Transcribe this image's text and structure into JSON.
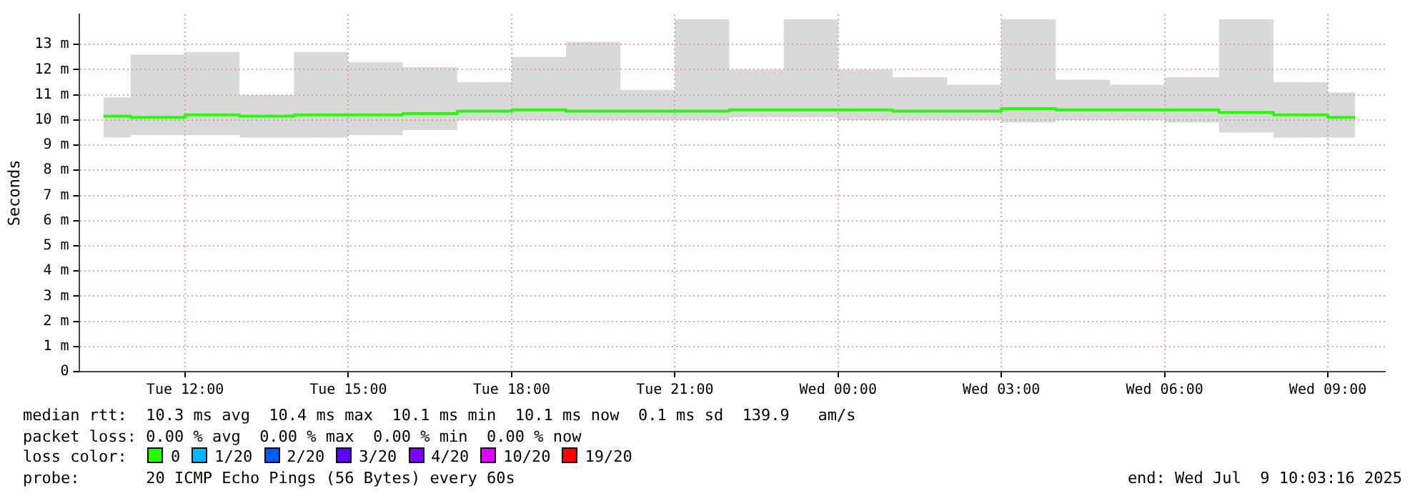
{
  "chart_data": {
    "type": "step",
    "ylabel": "Seconds",
    "legend_title": "loss color:",
    "legend": "bottom",
    "grid": true,
    "x": [
      "2025-07-08T10:30",
      "2025-07-08T11:30",
      "2025-07-08T12:30",
      "2025-07-08T13:30",
      "2025-07-08T14:30",
      "2025-07-08T15:30",
      "2025-07-08T16:30",
      "2025-07-08T17:30",
      "2025-07-08T18:30",
      "2025-07-08T19:30",
      "2025-07-08T20:30",
      "2025-07-08T21:30",
      "2025-07-08T22:30",
      "2025-07-08T23:30",
      "2025-07-09T00:30",
      "2025-07-09T01:30",
      "2025-07-09T02:30",
      "2025-07-09T03:30",
      "2025-07-09T04:30",
      "2025-07-09T05:30",
      "2025-07-09T06:30",
      "2025-07-09T07:30",
      "2025-07-09T08:30",
      "2025-07-09T09:30"
    ],
    "xlim": [
      "2025-07-08T10:03",
      "2025-07-09T10:03"
    ],
    "xticks": [
      {
        "value": "2025-07-08T12:00",
        "label": "Tue 12:00"
      },
      {
        "value": "2025-07-08T15:00",
        "label": "Tue 15:00"
      },
      {
        "value": "2025-07-08T18:00",
        "label": "Tue 18:00"
      },
      {
        "value": "2025-07-08T21:00",
        "label": "Tue 21:00"
      },
      {
        "value": "2025-07-09T00:00",
        "label": "Wed 00:00"
      },
      {
        "value": "2025-07-09T03:00",
        "label": "Wed 03:00"
      },
      {
        "value": "2025-07-09T06:00",
        "label": "Wed 06:00"
      },
      {
        "value": "2025-07-09T09:00",
        "label": "Wed 09:00"
      }
    ],
    "ylim": [
      0,
      14.2
    ],
    "yticks": [
      0,
      {
        "value": 1,
        "label": "1 m"
      },
      {
        "value": 2,
        "label": "2 m"
      },
      {
        "value": 3,
        "label": "3 m"
      },
      {
        "value": 4,
        "label": "4 m"
      },
      {
        "value": 5,
        "label": "5 m"
      },
      {
        "value": 6,
        "label": "6 m"
      },
      {
        "value": 7,
        "label": "7 m"
      },
      {
        "value": 8,
        "label": "8 m"
      },
      {
        "value": 9,
        "label": "9 m"
      },
      {
        "value": 10,
        "label": "10 m"
      },
      {
        "value": 11,
        "label": "11 m"
      },
      {
        "value": 12,
        "label": "12 m"
      },
      {
        "value": 13,
        "label": "13 m"
      }
    ],
    "series": [
      {
        "name": "0",
        "color": "#22ff00",
        "values": [
          10.15,
          10.1,
          10.2,
          10.15,
          10.2,
          10.2,
          10.25,
          10.35,
          10.4,
          10.35,
          10.35,
          10.35,
          10.4,
          10.4,
          10.4,
          10.35,
          10.35,
          10.45,
          10.4,
          10.4,
          10.4,
          10.3,
          10.2,
          10.1
        ],
        "lower": [
          9.3,
          9.4,
          9.4,
          9.3,
          9.3,
          9.4,
          9.6,
          10.0,
          10.0,
          10.0,
          10.0,
          10.0,
          10.1,
          10.1,
          10.0,
          10.0,
          10.0,
          9.9,
          10.0,
          10.0,
          9.9,
          9.5,
          9.3,
          9.3
        ],
        "upper": [
          10.9,
          12.6,
          12.7,
          11.0,
          12.7,
          12.3,
          12.1,
          11.5,
          12.5,
          13.1,
          11.2,
          14.0,
          12.0,
          14.0,
          12.0,
          11.7,
          11.4,
          14.0,
          11.6,
          11.4,
          11.7,
          14.0,
          11.5,
          11.1
        ]
      },
      {
        "name": "1/20",
        "color": "#00b8ff",
        "values": [
          null,
          null,
          null,
          null,
          null,
          null,
          null,
          null,
          null,
          null,
          null,
          null,
          null,
          null,
          null,
          null,
          null,
          null,
          null,
          null,
          null,
          null,
          null,
          null
        ]
      },
      {
        "name": "2/20",
        "color": "#0059ff",
        "values": [
          null,
          null,
          null,
          null,
          null,
          null,
          null,
          null,
          null,
          null,
          null,
          null,
          null,
          null,
          null,
          null,
          null,
          null,
          null,
          null,
          null,
          null,
          null,
          null
        ]
      },
      {
        "name": "3/20",
        "color": "#5e00ff",
        "values": [
          null,
          null,
          null,
          null,
          null,
          null,
          null,
          null,
          null,
          null,
          null,
          null,
          null,
          null,
          null,
          null,
          null,
          null,
          null,
          null,
          null,
          null,
          null,
          null
        ]
      },
      {
        "name": "4/20",
        "color": "#7e00ff",
        "values": [
          null,
          null,
          null,
          null,
          null,
          null,
          null,
          null,
          null,
          null,
          null,
          null,
          null,
          null,
          null,
          null,
          null,
          null,
          null,
          null,
          null,
          null,
          null,
          null
        ]
      },
      {
        "name": "10/20",
        "color": "#dd00ff",
        "values": [
          null,
          null,
          null,
          null,
          null,
          null,
          null,
          null,
          null,
          null,
          null,
          null,
          null,
          null,
          null,
          null,
          null,
          null,
          null,
          null,
          null,
          null,
          null,
          null
        ]
      },
      {
        "name": "19/20",
        "color": "#ff0000",
        "values": [
          null,
          null,
          null,
          null,
          null,
          null,
          null,
          null,
          null,
          null,
          null,
          null,
          null,
          null,
          null,
          null,
          null,
          null,
          null,
          null,
          null,
          null,
          null,
          null
        ]
      }
    ],
    "annotations": [
      "median rtt:  10.3 ms avg  10.4 ms max  10.1 ms min  10.1 ms now  0.1 ms sd  139.9   am/s",
      "packet loss: 0.00 % avg  0.00 % max  0.00 % min  0.00 % now",
      "probe:       20 ICMP Echo Pings (56 Bytes) every 60s",
      "end: Wed Jul  9 10:03:16 2025"
    ]
  }
}
